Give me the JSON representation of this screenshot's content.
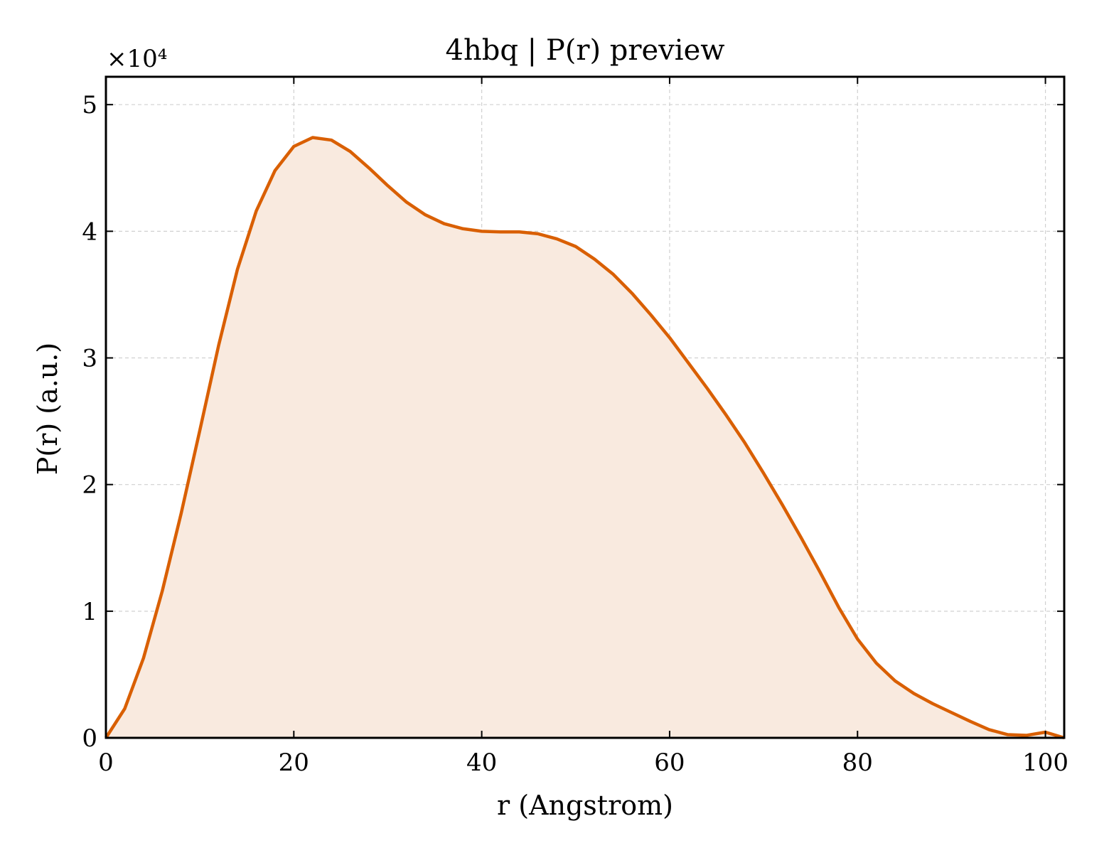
{
  "chart_data": {
    "type": "area",
    "title": "4hbq | P(r) preview",
    "xlabel": "r (Angstrom)",
    "ylabel": "P(r) (a.u.)",
    "y_multiplier_label": "×10⁴",
    "y_scale_factor": 10000,
    "xlim": [
      0,
      102
    ],
    "ylim": [
      0,
      52200
    ],
    "x_ticks": [
      0,
      20,
      40,
      60,
      80,
      100
    ],
    "y_ticks": [
      0,
      10000,
      20000,
      30000,
      40000,
      50000
    ],
    "y_tick_labels": [
      "0",
      "1",
      "2",
      "3",
      "4",
      "5"
    ],
    "grid": true,
    "line_color": "#d95f02",
    "fill_color": "#f9eadf",
    "series": [
      {
        "x": [
          0,
          2,
          4,
          6,
          8,
          10,
          12,
          14,
          16,
          18,
          20,
          22,
          24,
          26,
          28,
          30,
          32,
          34,
          36,
          38,
          40,
          42,
          44,
          46,
          48,
          50,
          52,
          54,
          56,
          58,
          60,
          62,
          64,
          66,
          68,
          70,
          72,
          74,
          76,
          78,
          80,
          82,
          84,
          86,
          88,
          90,
          92,
          94,
          96,
          98,
          100,
          102
        ],
        "y": [
          0,
          2300,
          6300,
          11600,
          17700,
          24300,
          31000,
          37000,
          41600,
          44800,
          46700,
          47400,
          47200,
          46300,
          45000,
          43600,
          42300,
          41300,
          40600,
          40200,
          40000,
          39950,
          39950,
          39800,
          39400,
          38800,
          37800,
          36600,
          35100,
          33400,
          31600,
          29600,
          27600,
          25500,
          23300,
          20900,
          18400,
          15800,
          13100,
          10300,
          7800,
          5900,
          4500,
          3500,
          2700,
          2000,
          1300,
          650,
          250,
          200,
          450,
          0
        ]
      }
    ]
  }
}
